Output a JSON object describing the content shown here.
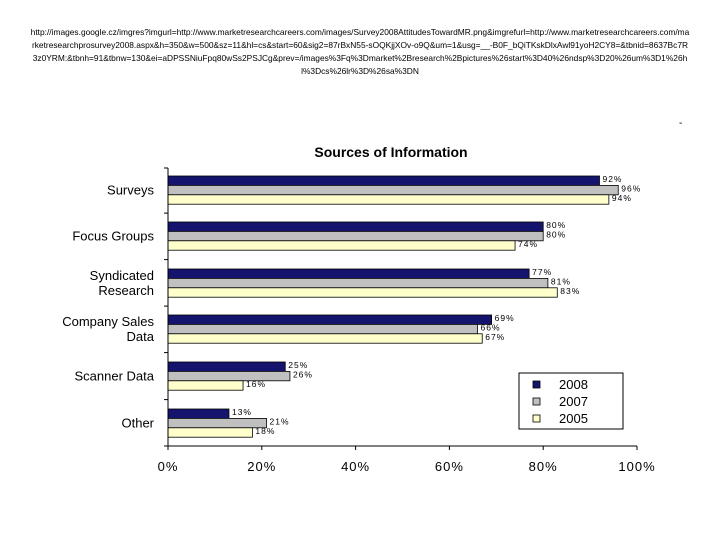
{
  "header": {
    "url_text": "http://images.google.cz/imgres?imgurl=http://www.marketresearchcareers.com/images/Survey2008AttitudesTowardMR.png&imgrefurl=http://www.marketresearchcareers.com/marketresearchprosurvey2008.aspx&h=350&w=500&sz=11&hl=cs&start=60&sig2=87rBxN55-sOQKjjXOv-o9Q&um=1&usg=__-B0F_bQiTKskDlxAwl91yoH2CY8=&tbnid=8637Bc7R3z0YRM:&tbnh=91&tbnw=130&ei=aDPSSNiuFpq80wSs2PSJCg&prev=/images%3Fq%3Dmarket%2Bresearch%2Bpictures%26start%3D40%26ndsp%3D20%26um%3D1%26hl%3Dcs%26lr%3D%26sa%3DN",
    "corner_mark": "-"
  },
  "chart_data": {
    "type": "bar",
    "orientation": "horizontal",
    "title": "Sources of Information",
    "categories": [
      "Surveys",
      "Focus Groups",
      "Syndicated Research",
      "Company Sales Data",
      "Scanner Data",
      "Other"
    ],
    "category_lines": [
      [
        "Surveys"
      ],
      [
        "Focus Groups"
      ],
      [
        "Syndicated",
        "Research"
      ],
      [
        "Company Sales",
        "Data"
      ],
      [
        "Scanner Data"
      ],
      [
        "Other"
      ]
    ],
    "series": [
      {
        "name": "2008",
        "color": "#14146e",
        "values": [
          92,
          80,
          77,
          69,
          25,
          13
        ],
        "labels": [
          "92%",
          "80%",
          "77%",
          "69%",
          "25%",
          "13%"
        ]
      },
      {
        "name": "2007",
        "color": "#c0c0c0",
        "values": [
          96,
          80,
          81,
          66,
          26,
          21
        ],
        "labels": [
          "96%",
          "80%",
          "81%",
          "66%",
          "26%",
          "21%"
        ]
      },
      {
        "name": "2005",
        "color": "#ffffcc",
        "values": [
          94,
          74,
          83,
          67,
          16,
          18
        ],
        "labels": [
          "94%",
          "74%",
          "83%",
          "67%",
          "16%",
          "18%"
        ]
      }
    ],
    "xlim": [
      0,
      100
    ],
    "xticks": [
      0,
      20,
      40,
      60,
      80,
      100
    ],
    "xtick_labels": [
      "0%",
      "20%",
      "40%",
      "60%",
      "80%",
      "100%"
    ],
    "grid": false,
    "legend": {
      "position": "bottom-right",
      "entries": [
        "2008",
        "2007",
        "2005"
      ]
    }
  }
}
